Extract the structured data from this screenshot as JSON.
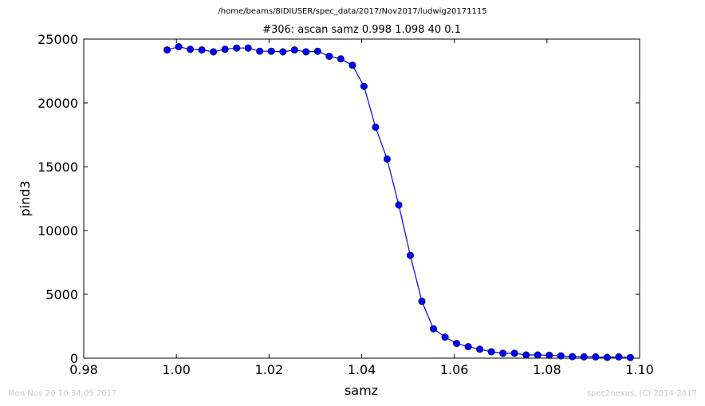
{
  "header": {
    "file_path": "/home/beams/8IDIUSER/spec_data/2017/Nov2017/ludwig20171115"
  },
  "footer": {
    "timestamp": "Mon Nov 20 10:34:09 2017",
    "credit": "spec2nexus, (C) 2014-2017"
  },
  "chart_data": {
    "type": "line",
    "title": "#306: ascan  samz 0.998 1.098  40 0.1",
    "xlabel": "samz",
    "ylabel": "pind3",
    "xlim": [
      0.98,
      1.1
    ],
    "ylim": [
      0,
      25000
    ],
    "x_ticks": [
      0.98,
      1.0,
      1.02,
      1.04,
      1.06,
      1.08,
      1.1
    ],
    "x_tick_labels": [
      "0.98",
      "1.00",
      "1.02",
      "1.04",
      "1.06",
      "1.08",
      "1.10"
    ],
    "y_ticks": [
      0,
      5000,
      10000,
      15000,
      20000,
      25000
    ],
    "y_tick_labels": [
      "0",
      "5000",
      "10000",
      "15000",
      "20000",
      "25000"
    ],
    "grid": false,
    "line_color": "#0000ff",
    "marker": "circle",
    "series": [
      {
        "x": [
          0.998,
          1.0005,
          1.003,
          1.0055,
          1.008,
          1.0105,
          1.013,
          1.0155,
          1.018,
          1.0205,
          1.023,
          1.0255,
          1.028,
          1.0305,
          1.033,
          1.0355,
          1.038,
          1.0405,
          1.043,
          1.0455,
          1.048,
          1.0505,
          1.053,
          1.0555,
          1.058,
          1.0605,
          1.063,
          1.0655,
          1.068,
          1.0705,
          1.073,
          1.0755,
          1.078,
          1.0805,
          1.083,
          1.0855,
          1.088,
          1.0905,
          1.093,
          1.0955,
          1.098
        ],
        "y": [
          24150,
          24400,
          24200,
          24150,
          24000,
          24200,
          24300,
          24300,
          24050,
          24050,
          24000,
          24150,
          24000,
          24050,
          23650,
          23450,
          22950,
          21300,
          18100,
          15600,
          12000,
          8050,
          4450,
          2300,
          1650,
          1150,
          900,
          700,
          500,
          380,
          380,
          250,
          250,
          230,
          180,
          120,
          100,
          100,
          60,
          100,
          50
        ]
      }
    ]
  }
}
